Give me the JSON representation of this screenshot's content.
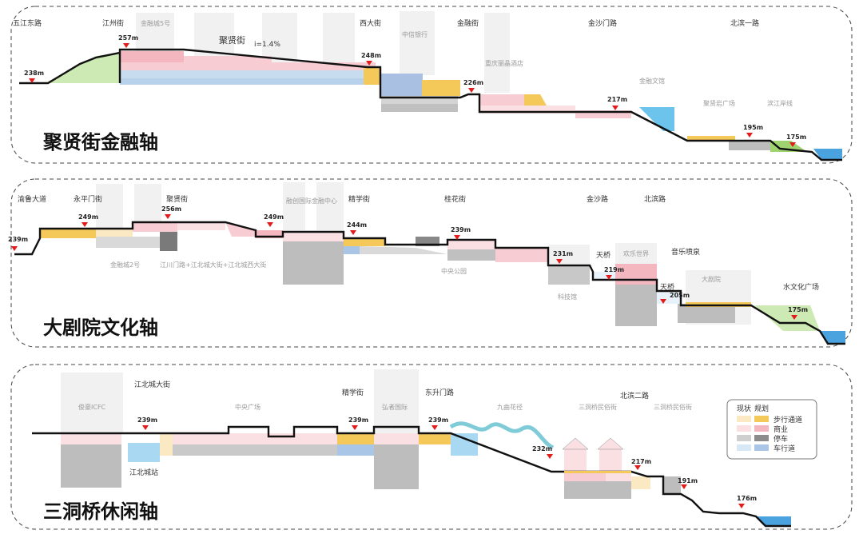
{
  "panel1": {
    "title": "聚贤街金融轴",
    "streets": [
      "五江东路",
      "江州街",
      "西大街",
      "金融街",
      "金沙门路",
      "北滨一路"
    ],
    "buildings": [
      "金融城5号",
      "中信银行",
      "重庆丽晶酒店",
      "金融文馆",
      "聚贤岩广场",
      "滨江岸线"
    ],
    "road_name": "聚贤街",
    "gradient": "i=1.4%",
    "elevations": [
      "238m",
      "257m",
      "248m",
      "226m",
      "217m",
      "195m",
      "175m"
    ]
  },
  "panel2": {
    "title": "大剧院文化轴",
    "streets": [
      "渝鲁大道",
      "永平门街",
      "聚贤街",
      "精学街",
      "桂花街",
      "金沙路",
      "北滨路"
    ],
    "buildings": [
      "融创国际金融中心",
      "金融城2号",
      "江川门路+江北城大街+江北城西大街",
      "中央公园",
      "科技馆",
      "欢乐世界",
      "大剧院",
      "水文化广场"
    ],
    "bridges": [
      "天桥",
      "天桥"
    ],
    "feature": "音乐喷泉",
    "elevations": [
      "239m",
      "249m",
      "256m",
      "249m",
      "244m",
      "239m",
      "231m",
      "219m",
      "205m",
      "175m"
    ]
  },
  "panel3": {
    "title": "三洞桥休闲轴",
    "streets": [
      "江北城大街",
      "精学街",
      "东升门路",
      "北滨二路"
    ],
    "buildings": [
      "俊豪ICFC",
      "中央广场",
      "弘者国际",
      "九曲花径",
      "三洞桥民俗街",
      "三洞桥民俗街",
      "江北城站"
    ],
    "elevations": [
      "239m",
      "239m",
      "239m",
      "232m",
      "217m",
      "191m",
      "176m"
    ]
  },
  "legend": {
    "header_current": "现状",
    "header_planned": "规划",
    "items": [
      {
        "label": "步行通道",
        "current": "#fbe9c3",
        "planned": "#f5c85a"
      },
      {
        "label": "商业",
        "current": "#fbe0e3",
        "planned": "#f4b7c0"
      },
      {
        "label": "停车",
        "current": "#cfcfcf",
        "planned": "#8c8c8c"
      },
      {
        "label": "车行道",
        "current": "#d8e8f5",
        "planned": "#a9c6e6"
      }
    ]
  },
  "colors": {
    "walk": "#f5c85a",
    "commerce": "#f4b7c0",
    "parking": "#bdbdbd",
    "road": "#b9d2ec",
    "water": "#4aa3df",
    "green": "#9fd36f",
    "marker": "#e21b1b"
  }
}
